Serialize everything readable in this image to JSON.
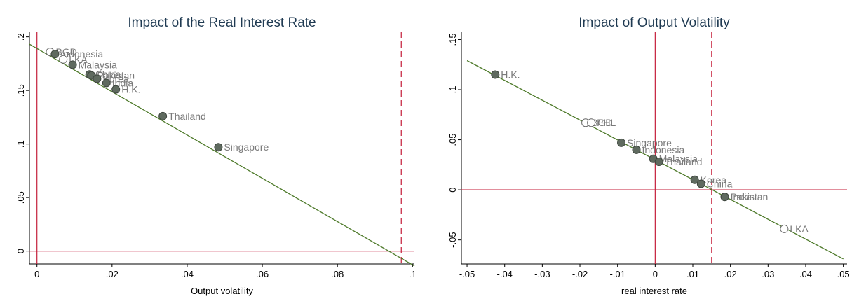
{
  "chart_data": [
    {
      "type": "scatter",
      "title": "Impact of the Real Interest Rate",
      "xlabel": "Output volatility",
      "ylabel": "",
      "xlim": [
        -0.002,
        0.1005
      ],
      "ylim": [
        -0.012,
        0.205
      ],
      "xticks": [
        0,
        0.02,
        0.04,
        0.06,
        0.08,
        0.1
      ],
      "xtick_labels": [
        "0",
        ".02",
        ".04",
        ".06",
        ".08",
        ".1"
      ],
      "yticks": [
        0,
        0.05,
        0.1,
        0.15,
        0.2
      ],
      "ytick_labels": [
        "0",
        ".05",
        ".1",
        ".15",
        ".2"
      ],
      "fit_line": {
        "x": [
          -0.002,
          0.1005
        ],
        "y": [
          0.1932,
          -0.0138
        ]
      },
      "hline_y": 0,
      "vline_x": 0,
      "vline_dashed_x": 0.097,
      "points": [
        {
          "label": "BGD",
          "x": 0.0035,
          "y": 0.186,
          "filled": false
        },
        {
          "label": "Indonesia",
          "x": 0.0048,
          "y": 0.184,
          "filled": true
        },
        {
          "label": "LKA",
          "x": 0.007,
          "y": 0.179,
          "filled": false
        },
        {
          "label": "Malaysia",
          "x": 0.0095,
          "y": 0.174,
          "filled": true
        },
        {
          "label": "China",
          "x": 0.014,
          "y": 0.165,
          "filled": true
        },
        {
          "label": "Pakistan",
          "x": 0.0145,
          "y": 0.164,
          "filled": true
        },
        {
          "label": "Korea",
          "x": 0.016,
          "y": 0.161,
          "filled": true
        },
        {
          "label": "India",
          "x": 0.0185,
          "y": 0.157,
          "filled": true
        },
        {
          "label": "H.K.",
          "x": 0.021,
          "y": 0.151,
          "filled": true
        },
        {
          "label": "Thailand",
          "x": 0.0335,
          "y": 0.126,
          "filled": true
        },
        {
          "label": "Singapore",
          "x": 0.0483,
          "y": 0.097,
          "filled": true
        }
      ]
    },
    {
      "type": "scatter",
      "title": "Impact of Output Volatility",
      "xlabel": "real interest rate",
      "ylabel": "",
      "xlim": [
        -0.0515,
        0.051
      ],
      "ylim": [
        -0.074,
        0.158
      ],
      "xticks": [
        -0.05,
        -0.04,
        -0.03,
        -0.02,
        -0.01,
        0,
        0.01,
        0.02,
        0.03,
        0.04,
        0.05
      ],
      "xtick_labels": [
        "-.05",
        "-.04",
        "-.03",
        "-.02",
        "-.01",
        "0",
        ".01",
        ".02",
        ".03",
        ".04",
        ".05"
      ],
      "yticks": [
        -0.05,
        0,
        0.05,
        0.1,
        0.15
      ],
      "ytick_labels": [
        "-.05",
        "0",
        ".05",
        ".1",
        ".15"
      ],
      "fit_line": {
        "x": [
          -0.05,
          0.05
        ],
        "y": [
          0.129,
          -0.069
        ]
      },
      "hline_y": 0,
      "vline_x": 0,
      "vline_dashed_x": 0.015,
      "points": [
        {
          "label": "H.K.",
          "x": -0.0425,
          "y": 0.115,
          "filled": true
        },
        {
          "label": "BGD",
          "x": -0.0185,
          "y": 0.067,
          "filled": false
        },
        {
          "label": "PHL",
          "x": -0.017,
          "y": 0.067,
          "filled": false
        },
        {
          "label": "Singapore",
          "x": -0.009,
          "y": 0.047,
          "filled": true
        },
        {
          "label": "Indonesia",
          "x": -0.005,
          "y": 0.04,
          "filled": true
        },
        {
          "label": "Malaysia",
          "x": -0.0005,
          "y": 0.031,
          "filled": true
        },
        {
          "label": "Thailand",
          "x": 0.001,
          "y": 0.028,
          "filled": true
        },
        {
          "label": "Korea",
          "x": 0.0105,
          "y": 0.01,
          "filled": true
        },
        {
          "label": "China",
          "x": 0.0122,
          "y": 0.006,
          "filled": true
        },
        {
          "label": "India",
          "x": 0.0185,
          "y": -0.007,
          "filled": true
        },
        {
          "label": "Pakistan",
          "x": 0.0185,
          "y": -0.007,
          "filled": true
        },
        {
          "label": "LKA",
          "x": 0.0343,
          "y": -0.039,
          "filled": false
        }
      ]
    }
  ],
  "colors": {
    "fit_line": "#4e7a2a",
    "ref_line": "#c41e3a",
    "marker_fill": "#5f6a5f",
    "marker_edge": "#3e463e",
    "point_label": "#7a7a7a",
    "title": "#1f3a52",
    "axis": "#000000"
  }
}
